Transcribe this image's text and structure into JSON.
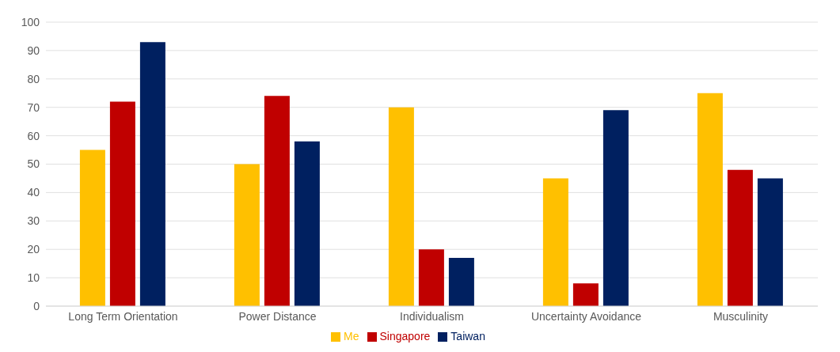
{
  "chart_data": {
    "type": "bar",
    "categories": [
      "Long Term Orientation",
      "Power Distance",
      "Individualism",
      "Uncertainty Avoidance",
      "Musculinity"
    ],
    "series": [
      {
        "name": "Me",
        "color": "#ffc000",
        "values": [
          55,
          50,
          70,
          45,
          75
        ]
      },
      {
        "name": "Singapore",
        "color": "#c00000",
        "values": [
          72,
          74,
          20,
          8,
          48
        ]
      },
      {
        "name": "Taiwan",
        "color": "#002060",
        "values": [
          93,
          58,
          17,
          69,
          45
        ]
      }
    ],
    "ylim": [
      0,
      100
    ],
    "yticks": [
      0,
      10,
      20,
      30,
      40,
      50,
      60,
      70,
      80,
      90,
      100
    ],
    "grid": "y",
    "legend": "bottom"
  }
}
